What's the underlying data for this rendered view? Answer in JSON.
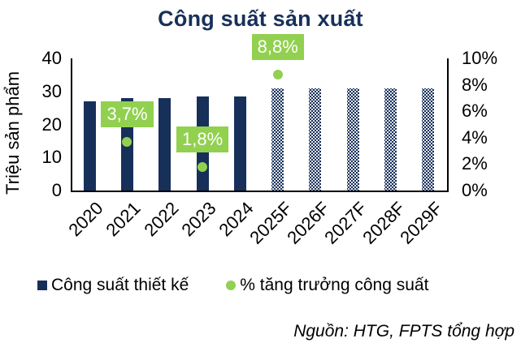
{
  "chart_data": {
    "type": "bar",
    "title": "Công suất sản xuất",
    "xlabel": "",
    "ylabel": "Triệu sản phẩm",
    "y2label": "",
    "categories": [
      "2020",
      "2021",
      "2022",
      "2023",
      "2024",
      "2025F",
      "2026F",
      "2027F",
      "2028F",
      "2029F"
    ],
    "series": [
      {
        "name": "Công suất thiết kế",
        "type": "bar",
        "axis": "left",
        "values": [
          27,
          28,
          28,
          28.5,
          28.5,
          31,
          31,
          31,
          31,
          31
        ],
        "forecast_from_index": 5,
        "color": "#17305a"
      },
      {
        "name": "% tăng trưởng công suất",
        "type": "scatter",
        "axis": "right",
        "values": [
          null,
          3.7,
          null,
          1.8,
          null,
          8.8,
          null,
          null,
          null,
          null
        ],
        "labels": [
          null,
          "3,7%",
          null,
          "1,8%",
          null,
          "8,8%",
          null,
          null,
          null,
          null
        ],
        "color": "#92d050"
      }
    ],
    "ylim": [
      0,
      40
    ],
    "y2lim": [
      0,
      10
    ],
    "yticks": [
      "0",
      "10",
      "20",
      "30",
      "40"
    ],
    "y2ticks": [
      "0%",
      "2%",
      "4%",
      "6%",
      "8%",
      "10%"
    ],
    "grid": false,
    "legend_position": "bottom"
  },
  "legend": {
    "bar_label": "Công suất thiết kế",
    "dot_label": "% tăng trưởng công suất"
  },
  "source": "Nguồn: HTG, FPTS tổng hợp"
}
